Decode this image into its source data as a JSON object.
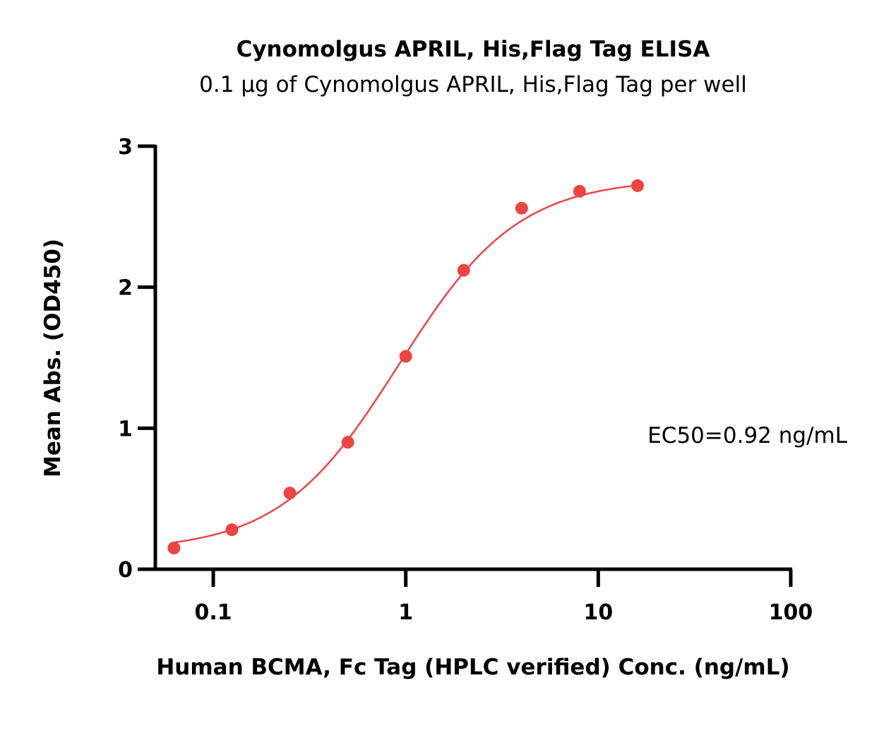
{
  "chart_data": {
    "type": "scatter",
    "title": "Cynomolgus APRIL, His,Flag Tag ELISA",
    "subtitle": "0.1 μg of Cynomolgus APRIL, His,Flag Tag per well",
    "xlabel": "Human BCMA, Fc Tag (HPLC verified) Conc. (ng/mL)",
    "ylabel": "Mean Abs. (OD450)",
    "xscale": "log",
    "xlim": [
      0.05,
      100
    ],
    "ylim": [
      0,
      3
    ],
    "xticks": [
      0.1,
      1,
      10,
      100
    ],
    "xtick_labels": [
      "0.1",
      "1",
      "10",
      "100"
    ],
    "yticks": [
      0,
      1,
      2,
      3
    ],
    "ytick_labels": [
      "0",
      "1",
      "2",
      "3"
    ],
    "grid": false,
    "legend": "none",
    "series": [
      {
        "x": [
          0.0625,
          0.125,
          0.25,
          0.5,
          1,
          2,
          4,
          8,
          16
        ],
        "y": [
          0.15,
          0.28,
          0.54,
          0.9,
          1.51,
          2.12,
          2.56,
          2.68,
          2.72
        ],
        "color": "#ef4444",
        "fit": "4PL",
        "fit_params": {
          "bottom": 0.13,
          "top": 2.77,
          "ec50": 0.92,
          "hill": 1.4
        }
      }
    ],
    "annotations": [
      {
        "text": "EC50=0.92 ng/mL"
      }
    ]
  }
}
